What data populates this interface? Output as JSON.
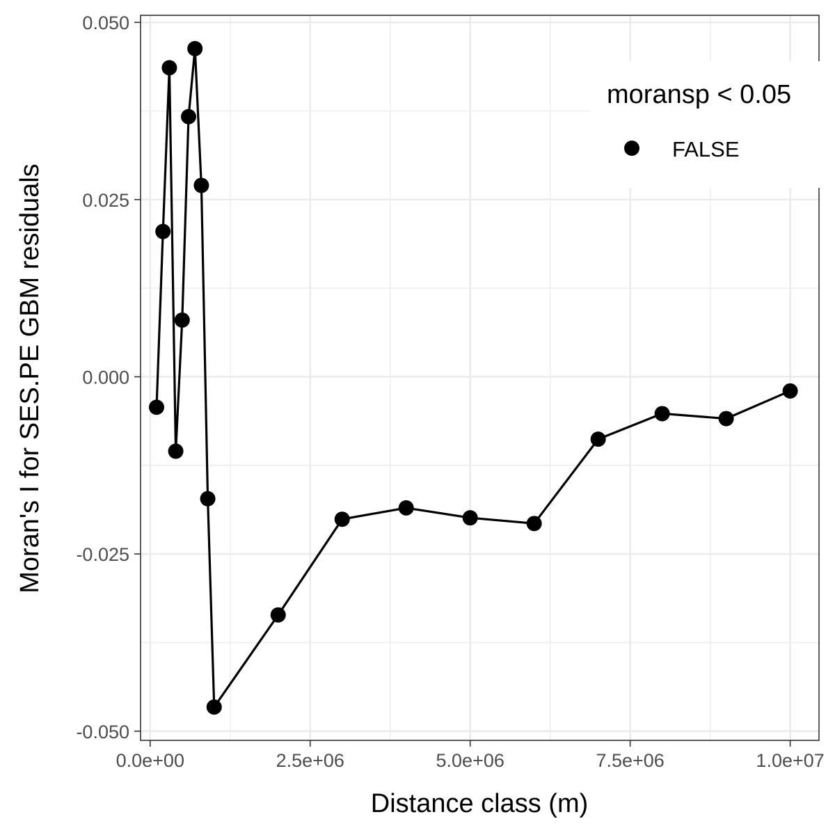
{
  "chart_data": {
    "type": "line",
    "title": "",
    "xlabel": "Distance class (m)",
    "ylabel": "Moran's I for SES.PE GBM residuals",
    "xlim": [
      -150000,
      10450000
    ],
    "ylim": [
      -0.0513,
      0.051
    ],
    "x_ticks": [
      0,
      2500000,
      5000000,
      7500000,
      10000000
    ],
    "x_tick_labels": [
      "0.0e+00",
      "2.5e+06",
      "5.0e+06",
      "7.5e+06",
      "1.0e+07"
    ],
    "y_ticks": [
      -0.05,
      -0.025,
      0.0,
      0.025,
      0.05
    ],
    "y_tick_labels": [
      "-0.050",
      "-0.025",
      "0.000",
      "0.025",
      "0.050"
    ],
    "grid": true,
    "legend": {
      "title": "moransp < 0.05",
      "placement": "top-right",
      "entries": [
        {
          "label": "FALSE",
          "color": "#000000"
        }
      ]
    },
    "series": [
      {
        "group": "FALSE",
        "color": "#000000",
        "x": [
          100000,
          200000,
          300000,
          400000,
          500000,
          600000,
          700000,
          800000,
          900000,
          1000000,
          2000000,
          3000000,
          4000000,
          5000000,
          6000000,
          7000000,
          8000000,
          9000000,
          10000000
        ],
        "values": [
          -0.0043,
          0.0205,
          0.0436,
          -0.0105,
          0.008,
          0.0367,
          0.0463,
          0.027,
          -0.0172,
          -0.0466,
          -0.0336,
          -0.0201,
          -0.0185,
          -0.0199,
          -0.0207,
          -0.0088,
          -0.0052,
          -0.0059,
          -0.002
        ]
      }
    ]
  }
}
